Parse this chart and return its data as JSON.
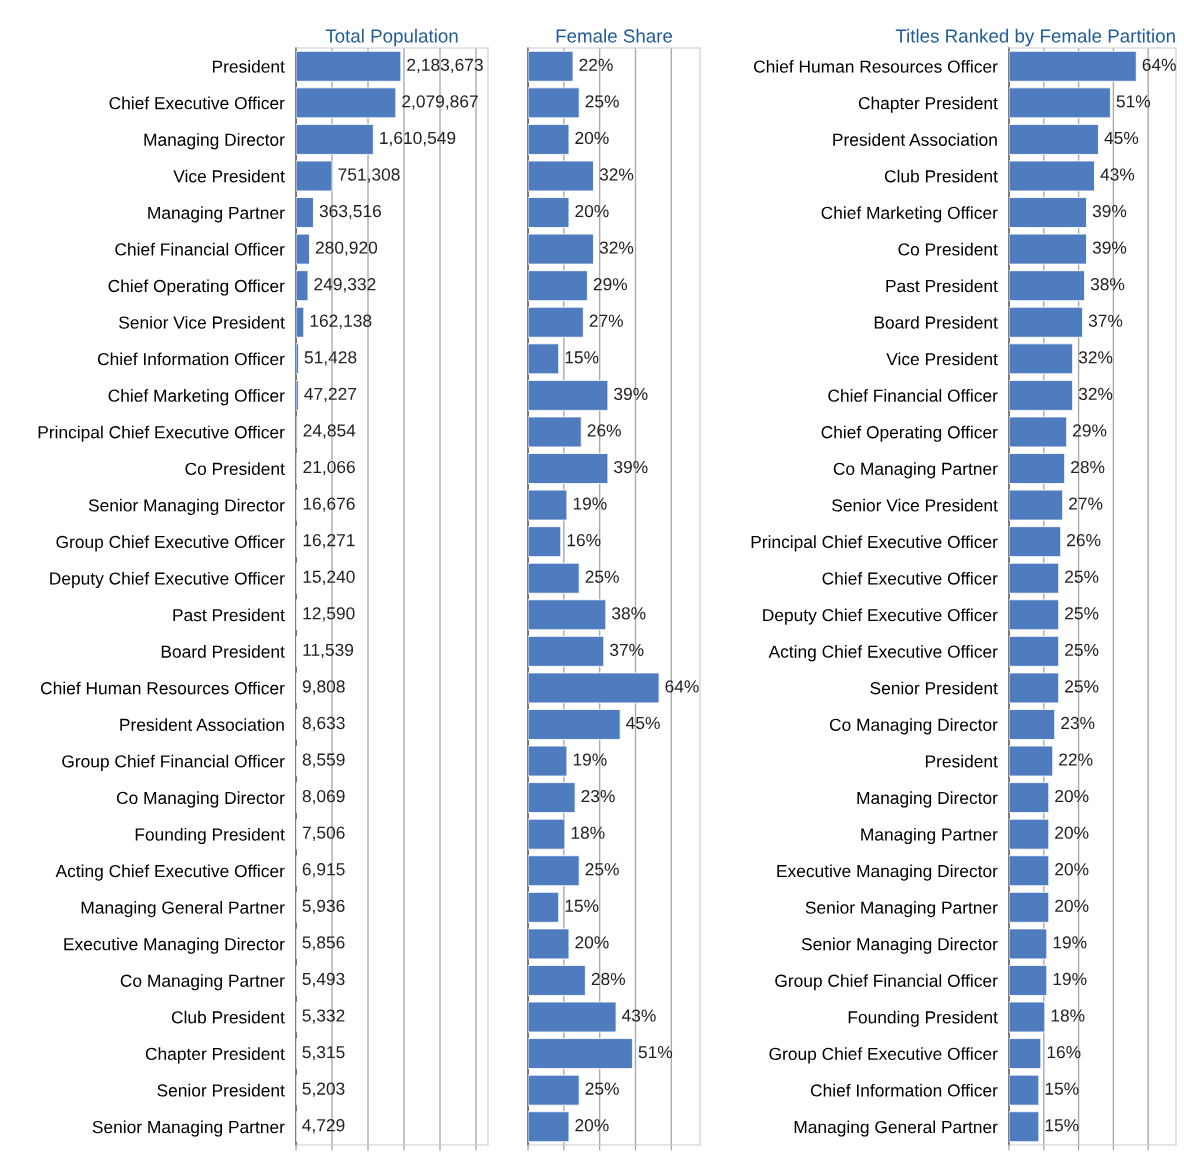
{
  "chart_data": [
    {
      "type": "bar",
      "orientation": "horizontal",
      "title": "Total Population",
      "color": "#4f7bbf",
      "grid": "x",
      "tick_labels": "y",
      "categories": [
        "President",
        "Chief Executive Officer",
        "Managing Director",
        "Vice President",
        "Managing Partner",
        "Chief Financial Officer",
        "Chief Operating Officer",
        "Senior Vice President",
        "Chief Information Officer",
        "Chief Marketing Officer",
        "Principal Chief Executive Officer",
        "Co President",
        "Senior Managing Director",
        "Group Chief Executive Officer",
        "Deputy Chief Executive Officer",
        "Past President",
        "Board President",
        "Chief Human Resources Officer",
        "President Association",
        "Group Chief Financial Officer",
        "Co Managing Director",
        "Founding President",
        "Acting Chief Executive Officer",
        "Managing General Partner",
        "Executive Managing Director",
        "Co Managing Partner",
        "Club President",
        "Chapter President",
        "Senior President",
        "Senior Managing Partner"
      ],
      "values": [
        2183673,
        2079867,
        1610549,
        751308,
        363516,
        280920,
        249332,
        162138,
        51428,
        47227,
        24854,
        21066,
        16676,
        16271,
        15240,
        12590,
        11539,
        9808,
        8633,
        8559,
        8069,
        7506,
        6915,
        5936,
        5856,
        5493,
        5332,
        5315,
        5203,
        4729
      ],
      "value_labels": [
        "2,183,673",
        "2,079,867",
        "1,610,549",
        "751,308",
        "363,516",
        "280,920",
        "249,332",
        "162,138",
        "51,428",
        "47,227",
        "24,854",
        "21,066",
        "16,676",
        "16,271",
        "15,240",
        "12,590",
        "11,539",
        "9,808",
        "8,633",
        "8,559",
        "8,069",
        "7,506",
        "6,915",
        "5,936",
        "5,856",
        "5,493",
        "5,332",
        "5,315",
        "5,203",
        "4,729"
      ],
      "xlim": [
        0,
        4000000
      ],
      "xticks": [
        {
          "value": 0,
          "label": null
        },
        {
          "value": 750000,
          "label": null
        },
        {
          "value": 1500000,
          "label": null
        },
        {
          "value": 2250000,
          "label": null
        },
        {
          "value": 3000000,
          "label": null
        },
        {
          "value": 3750000,
          "label": null
        }
      ]
    },
    {
      "type": "bar",
      "orientation": "horizontal",
      "title": "Female Share",
      "color": "#4f7bbf",
      "grid": "x",
      "tick_labels": false,
      "categories": [
        null,
        null,
        null,
        null,
        null,
        null,
        null,
        null,
        null,
        null,
        null,
        null,
        null,
        null,
        null,
        null,
        null,
        null,
        null,
        null,
        null,
        null,
        null,
        null,
        null,
        null,
        null,
        null,
        null,
        null
      ],
      "values": [
        22,
        25,
        20,
        32,
        20,
        32,
        29,
        27,
        15,
        39,
        26,
        39,
        19,
        16,
        25,
        38,
        37,
        64,
        45,
        19,
        23,
        18,
        25,
        15,
        20,
        28,
        43,
        51,
        25,
        20
      ],
      "value_labels": [
        "22%",
        "25%",
        "20%",
        "32%",
        "20%",
        "32%",
        "29%",
        "27%",
        "15%",
        "39%",
        "26%",
        "39%",
        "19%",
        "16%",
        "25%",
        "38%",
        "37%",
        "64%",
        "45%",
        "19%",
        "23%",
        "18%",
        "25%",
        "15%",
        "20%",
        "28%",
        "43%",
        "51%",
        "25%",
        "20%"
      ],
      "xlim": [
        0,
        84
      ],
      "xticks": [
        {
          "value": 0,
          "label": null
        },
        {
          "value": 17.5,
          "label": null
        },
        {
          "value": 35,
          "label": null
        },
        {
          "value": 52.5,
          "label": null
        },
        {
          "value": 70,
          "label": null
        }
      ]
    },
    {
      "type": "bar",
      "orientation": "horizontal",
      "title": "Titles Ranked by Female Partition",
      "color": "#4f7bbf",
      "grid": "x",
      "tick_labels": "y",
      "categories": [
        "Chief Human Resources Officer",
        "Chapter President",
        "President Association",
        "Club President",
        "Chief Marketing Officer",
        "Co President",
        "Past President",
        "Board President",
        "Vice President",
        "Chief Financial Officer",
        "Chief Operating Officer",
        "Co Managing Partner",
        "Senior Vice President",
        "Principal Chief Executive Officer",
        "Chief Executive Officer",
        "Deputy Chief Executive Officer",
        "Acting Chief Executive Officer",
        "Senior President",
        "Co Managing Director",
        "President",
        "Managing Director",
        "Managing Partner",
        "Executive Managing Director",
        "Senior Managing Partner",
        "Senior Managing Director",
        "Group Chief Financial Officer",
        "Founding President",
        "Group Chief Executive Officer",
        "Chief Information Officer",
        "Managing General Partner"
      ],
      "values": [
        64,
        51,
        45,
        43,
        39,
        39,
        38,
        37,
        32,
        32,
        29,
        28,
        27,
        26,
        25,
        25,
        25,
        25,
        23,
        22,
        20,
        20,
        20,
        20,
        19,
        19,
        18,
        16,
        15,
        15
      ],
      "value_labels": [
        "64%",
        "51%",
        "45%",
        "43%",
        "39%",
        "39%",
        "38%",
        "37%",
        "32%",
        "32%",
        "29%",
        "28%",
        "27%",
        "26%",
        "25%",
        "25%",
        "25%",
        "25%",
        "23%",
        "22%",
        "20%",
        "20%",
        "20%",
        "20%",
        "19%",
        "19%",
        "18%",
        "16%",
        "15%",
        "15%"
      ],
      "xlim": [
        0,
        84
      ],
      "xticks": [
        {
          "value": 0,
          "label": null
        },
        {
          "value": 17.5,
          "label": null
        },
        {
          "value": 35,
          "label": null
        },
        {
          "value": 52.5,
          "label": null
        },
        {
          "value": 70,
          "label": null
        }
      ]
    }
  ]
}
